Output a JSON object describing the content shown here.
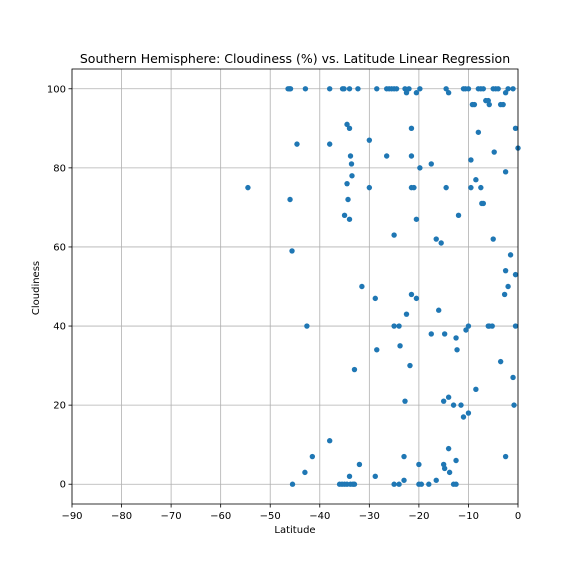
{
  "chart_data": {
    "type": "scatter",
    "title": "Southern Hemisphere: Cloudiness (%) vs. Latitude Linear Regression",
    "xlabel": "Latitude",
    "ylabel": "Cloudiness",
    "xlim": [
      -90,
      0
    ],
    "ylim": [
      -5,
      105
    ],
    "xticks": [
      -90,
      -80,
      -70,
      -60,
      -50,
      -40,
      -30,
      -20,
      -10,
      0
    ],
    "xtick_labels": [
      "−90",
      "−80",
      "−70",
      "−60",
      "−50",
      "−40",
      "−30",
      "−20",
      "−10",
      "0"
    ],
    "yticks": [
      0,
      20,
      40,
      60,
      80,
      100
    ],
    "ytick_labels": [
      "0",
      "20",
      "40",
      "60",
      "80",
      "100"
    ],
    "grid": true,
    "marker_color": "#1f77b4",
    "points": [
      [
        -54.5,
        75
      ],
      [
        -46.4,
        100
      ],
      [
        -46.1,
        100
      ],
      [
        -45.9,
        100
      ],
      [
        -42.9,
        100
      ],
      [
        -38.0,
        100
      ],
      [
        -35.4,
        100
      ],
      [
        -35.1,
        100
      ],
      [
        -34.0,
        100
      ],
      [
        -32.3,
        100
      ],
      [
        -28.5,
        100
      ],
      [
        -26.5,
        100
      ],
      [
        -26.0,
        100
      ],
      [
        -25.5,
        100
      ],
      [
        -25.0,
        100
      ],
      [
        -24.5,
        100
      ],
      [
        -22.8,
        100
      ],
      [
        -22.5,
        99
      ],
      [
        -22.0,
        100
      ],
      [
        -20.5,
        99
      ],
      [
        -19.8,
        100
      ],
      [
        -14.5,
        100
      ],
      [
        -14.0,
        99
      ],
      [
        -11.0,
        100
      ],
      [
        -10.6,
        100
      ],
      [
        -10.0,
        100
      ],
      [
        -9.2,
        96
      ],
      [
        -8.8,
        96
      ],
      [
        -8.0,
        100
      ],
      [
        -7.5,
        100
      ],
      [
        -7.0,
        100
      ],
      [
        -6.5,
        97
      ],
      [
        -6.0,
        97
      ],
      [
        -5.8,
        96
      ],
      [
        -5.0,
        100
      ],
      [
        -4.5,
        100
      ],
      [
        -4.0,
        100
      ],
      [
        -3.5,
        96
      ],
      [
        -3.0,
        96
      ],
      [
        -2.5,
        99
      ],
      [
        -2.0,
        100
      ],
      [
        -1.0,
        100
      ],
      [
        -0.5,
        90
      ],
      [
        0,
        85
      ],
      [
        -44.6,
        86
      ],
      [
        -38.0,
        86
      ],
      [
        -34.5,
        91
      ],
      [
        -34.0,
        90
      ],
      [
        -33.8,
        83
      ],
      [
        -33.6,
        81
      ],
      [
        -33.5,
        78
      ],
      [
        -30.0,
        87
      ],
      [
        -26.5,
        83
      ],
      [
        -21.5,
        90
      ],
      [
        -21.5,
        83
      ],
      [
        -19.8,
        80
      ],
      [
        -17.5,
        81
      ],
      [
        -9.5,
        82
      ],
      [
        -8.0,
        89
      ],
      [
        -4.8,
        84
      ],
      [
        -2.5,
        79
      ],
      [
        -46.0,
        72
      ],
      [
        -35.0,
        68
      ],
      [
        -34.5,
        76
      ],
      [
        -34.3,
        72
      ],
      [
        -34.0,
        67
      ],
      [
        -30.0,
        75
      ],
      [
        -21.5,
        75
      ],
      [
        -21.0,
        75
      ],
      [
        -20.5,
        67
      ],
      [
        -14.5,
        75
      ],
      [
        -12.0,
        68
      ],
      [
        -9.5,
        75
      ],
      [
        -8.5,
        77
      ],
      [
        -7.5,
        75
      ],
      [
        -7.3,
        71
      ],
      [
        -7.0,
        71
      ],
      [
        -5.0,
        62
      ],
      [
        -1.5,
        58
      ],
      [
        -0.5,
        53
      ],
      [
        -2.5,
        54
      ],
      [
        -45.6,
        59
      ],
      [
        -25.0,
        63
      ],
      [
        -16.5,
        62
      ],
      [
        -15.5,
        61
      ],
      [
        -31.5,
        50
      ],
      [
        -28.8,
        47
      ],
      [
        -21.5,
        48
      ],
      [
        -20.5,
        47
      ],
      [
        -2.0,
        50
      ],
      [
        -2.7,
        48
      ],
      [
        -42.6,
        40
      ],
      [
        -25.0,
        40
      ],
      [
        -24.0,
        40
      ],
      [
        -22.5,
        43
      ],
      [
        -16.0,
        44
      ],
      [
        -17.5,
        38
      ],
      [
        -14.8,
        38
      ],
      [
        -12.5,
        37
      ],
      [
        -10.5,
        39
      ],
      [
        -10.0,
        40
      ],
      [
        -6.0,
        40
      ],
      [
        -5.8,
        40
      ],
      [
        -5.2,
        40
      ],
      [
        -0.5,
        40
      ],
      [
        -28.5,
        34
      ],
      [
        -23.8,
        35
      ],
      [
        -12.3,
        34
      ],
      [
        -3.5,
        31
      ],
      [
        -33.0,
        29
      ],
      [
        -21.8,
        30
      ],
      [
        -1.0,
        27
      ],
      [
        -8.5,
        24
      ],
      [
        -15.0,
        21
      ],
      [
        -14.0,
        22
      ],
      [
        -22.8,
        21
      ],
      [
        -13.0,
        20
      ],
      [
        -11.5,
        20
      ],
      [
        -11.0,
        17
      ],
      [
        -10.0,
        18
      ],
      [
        -0.8,
        20
      ],
      [
        -38.0,
        11
      ],
      [
        -14.0,
        9
      ],
      [
        -12.5,
        6
      ],
      [
        -2.5,
        7
      ],
      [
        -23.0,
        7
      ],
      [
        -41.5,
        7
      ],
      [
        -43.0,
        3
      ],
      [
        -32.0,
        5
      ],
      [
        -20.0,
        5
      ],
      [
        -15.0,
        5
      ],
      [
        -14.8,
        4
      ],
      [
        -13.8,
        3
      ],
      [
        -34.0,
        2
      ],
      [
        -28.8,
        2
      ],
      [
        -23.0,
        1
      ],
      [
        -16.5,
        1
      ],
      [
        -45.5,
        0
      ],
      [
        -36.0,
        0
      ],
      [
        -35.5,
        0
      ],
      [
        -35.0,
        0
      ],
      [
        -34.5,
        0
      ],
      [
        -33.8,
        0
      ],
      [
        -33.3,
        0
      ],
      [
        -33.0,
        0
      ],
      [
        -25.0,
        0
      ],
      [
        -24.0,
        0
      ],
      [
        -20.0,
        0
      ],
      [
        -19.5,
        0
      ],
      [
        -18.0,
        0
      ],
      [
        -13.0,
        0
      ],
      [
        -12.5,
        0
      ]
    ]
  }
}
